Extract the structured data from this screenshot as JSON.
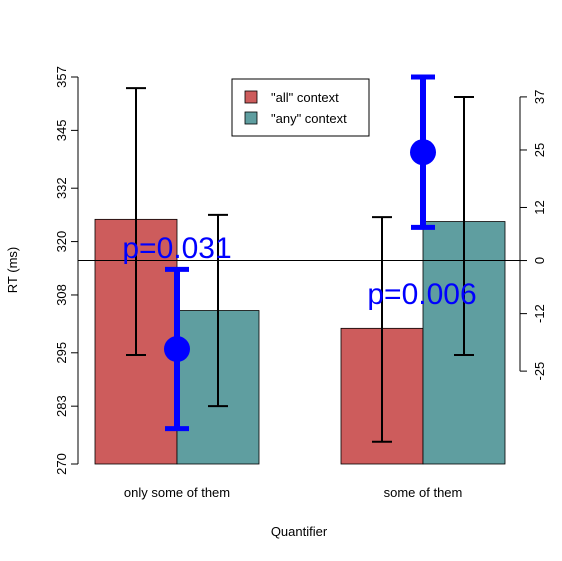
{
  "chart_data": {
    "type": "bar",
    "xlabel": "Quantifier",
    "ylabel": "RT (ms)",
    "categories": [
      "only some of them",
      "some of them"
    ],
    "ylim": [
      270,
      357
    ],
    "y_ticks": [
      "270",
      "283",
      "295",
      "308",
      "320",
      "332",
      "345",
      "357"
    ],
    "series": [
      {
        "name": "\"all\" context",
        "color": "#cd5c5c",
        "values": [
          325,
          300.5
        ],
        "ci_low": [
          294.5,
          275
        ],
        "ci_high": [
          354.5,
          325.5
        ]
      },
      {
        "name": "\"any\" context",
        "color": "#5f9ea0",
        "values": [
          304.5,
          324.5
        ],
        "ci_low": [
          283,
          294.5
        ],
        "ci_high": [
          326,
          352.5
        ]
      }
    ],
    "right_axis": {
      "ylim": [
        -46,
        41.5
      ],
      "ticks": [
        "-25",
        "-12",
        "0",
        "12",
        "25",
        "37"
      ],
      "reference_line": 0
    },
    "differences": {
      "color": "#0000ff",
      "values": [
        -20,
        24.5
      ],
      "ci_low": [
        -38,
        7.5
      ],
      "ci_high": [
        -2,
        41.5
      ],
      "labels": [
        "p=0.031",
        "p=0.006"
      ]
    },
    "legend": {
      "position": "top-center"
    }
  }
}
